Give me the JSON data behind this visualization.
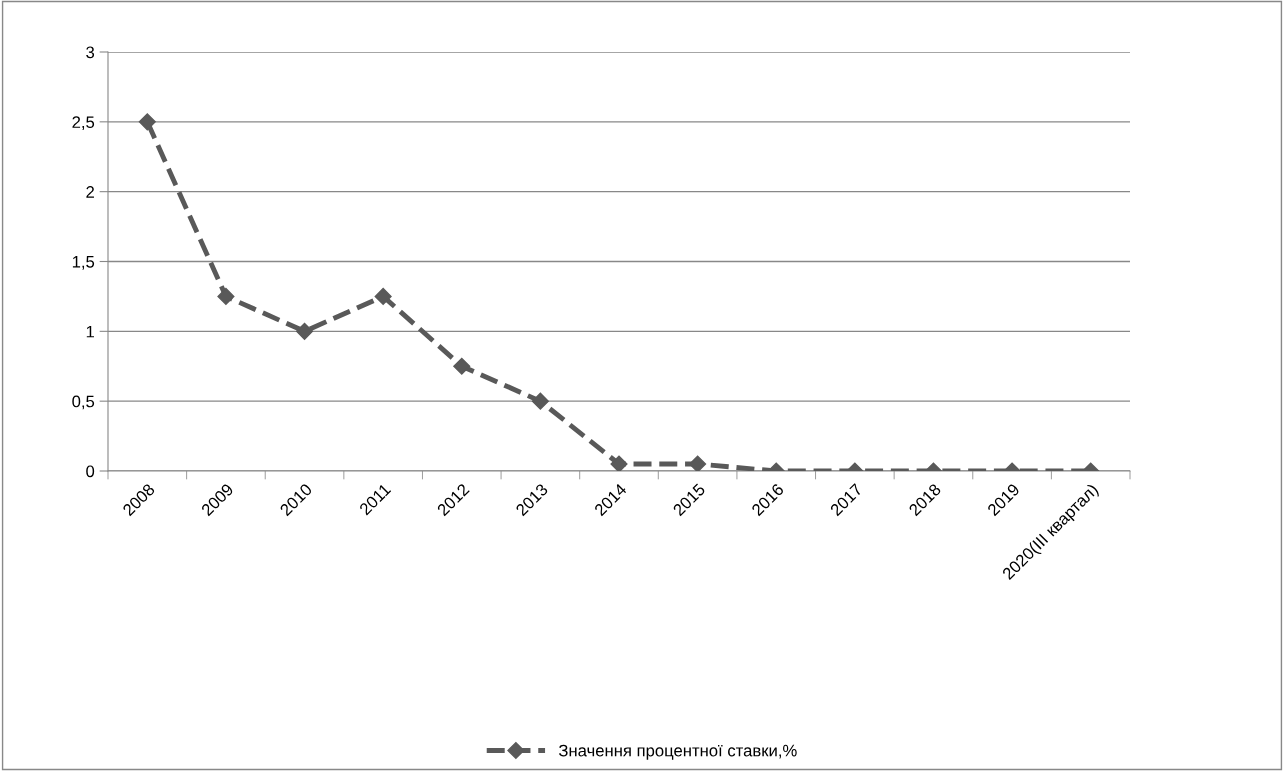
{
  "chart_data": {
    "type": "line",
    "categories": [
      "2008",
      "2009",
      "2010",
      "2011",
      "2012",
      "2013",
      "2014",
      "2015",
      "2016",
      "2017",
      "2018",
      "2019",
      "2020(III квартал)"
    ],
    "series": [
      {
        "name": "Значення процентної ставки,%",
        "color": "#595959",
        "values": [
          2.5,
          1.25,
          1.0,
          1.25,
          0.75,
          0.5,
          0.05,
          0.05,
          0,
          0,
          0,
          0,
          0
        ]
      }
    ],
    "ylim": [
      0,
      3
    ],
    "yticks": [
      0,
      {
        "value": 0.5,
        "label": "0,5"
      },
      1,
      {
        "value": 1.5,
        "label": "1,5"
      },
      2,
      {
        "value": 2.5,
        "label": "2,5"
      },
      3
    ],
    "grid": "y",
    "legend": "bottom",
    "marker": "diamond",
    "line_style": "dashed"
  }
}
